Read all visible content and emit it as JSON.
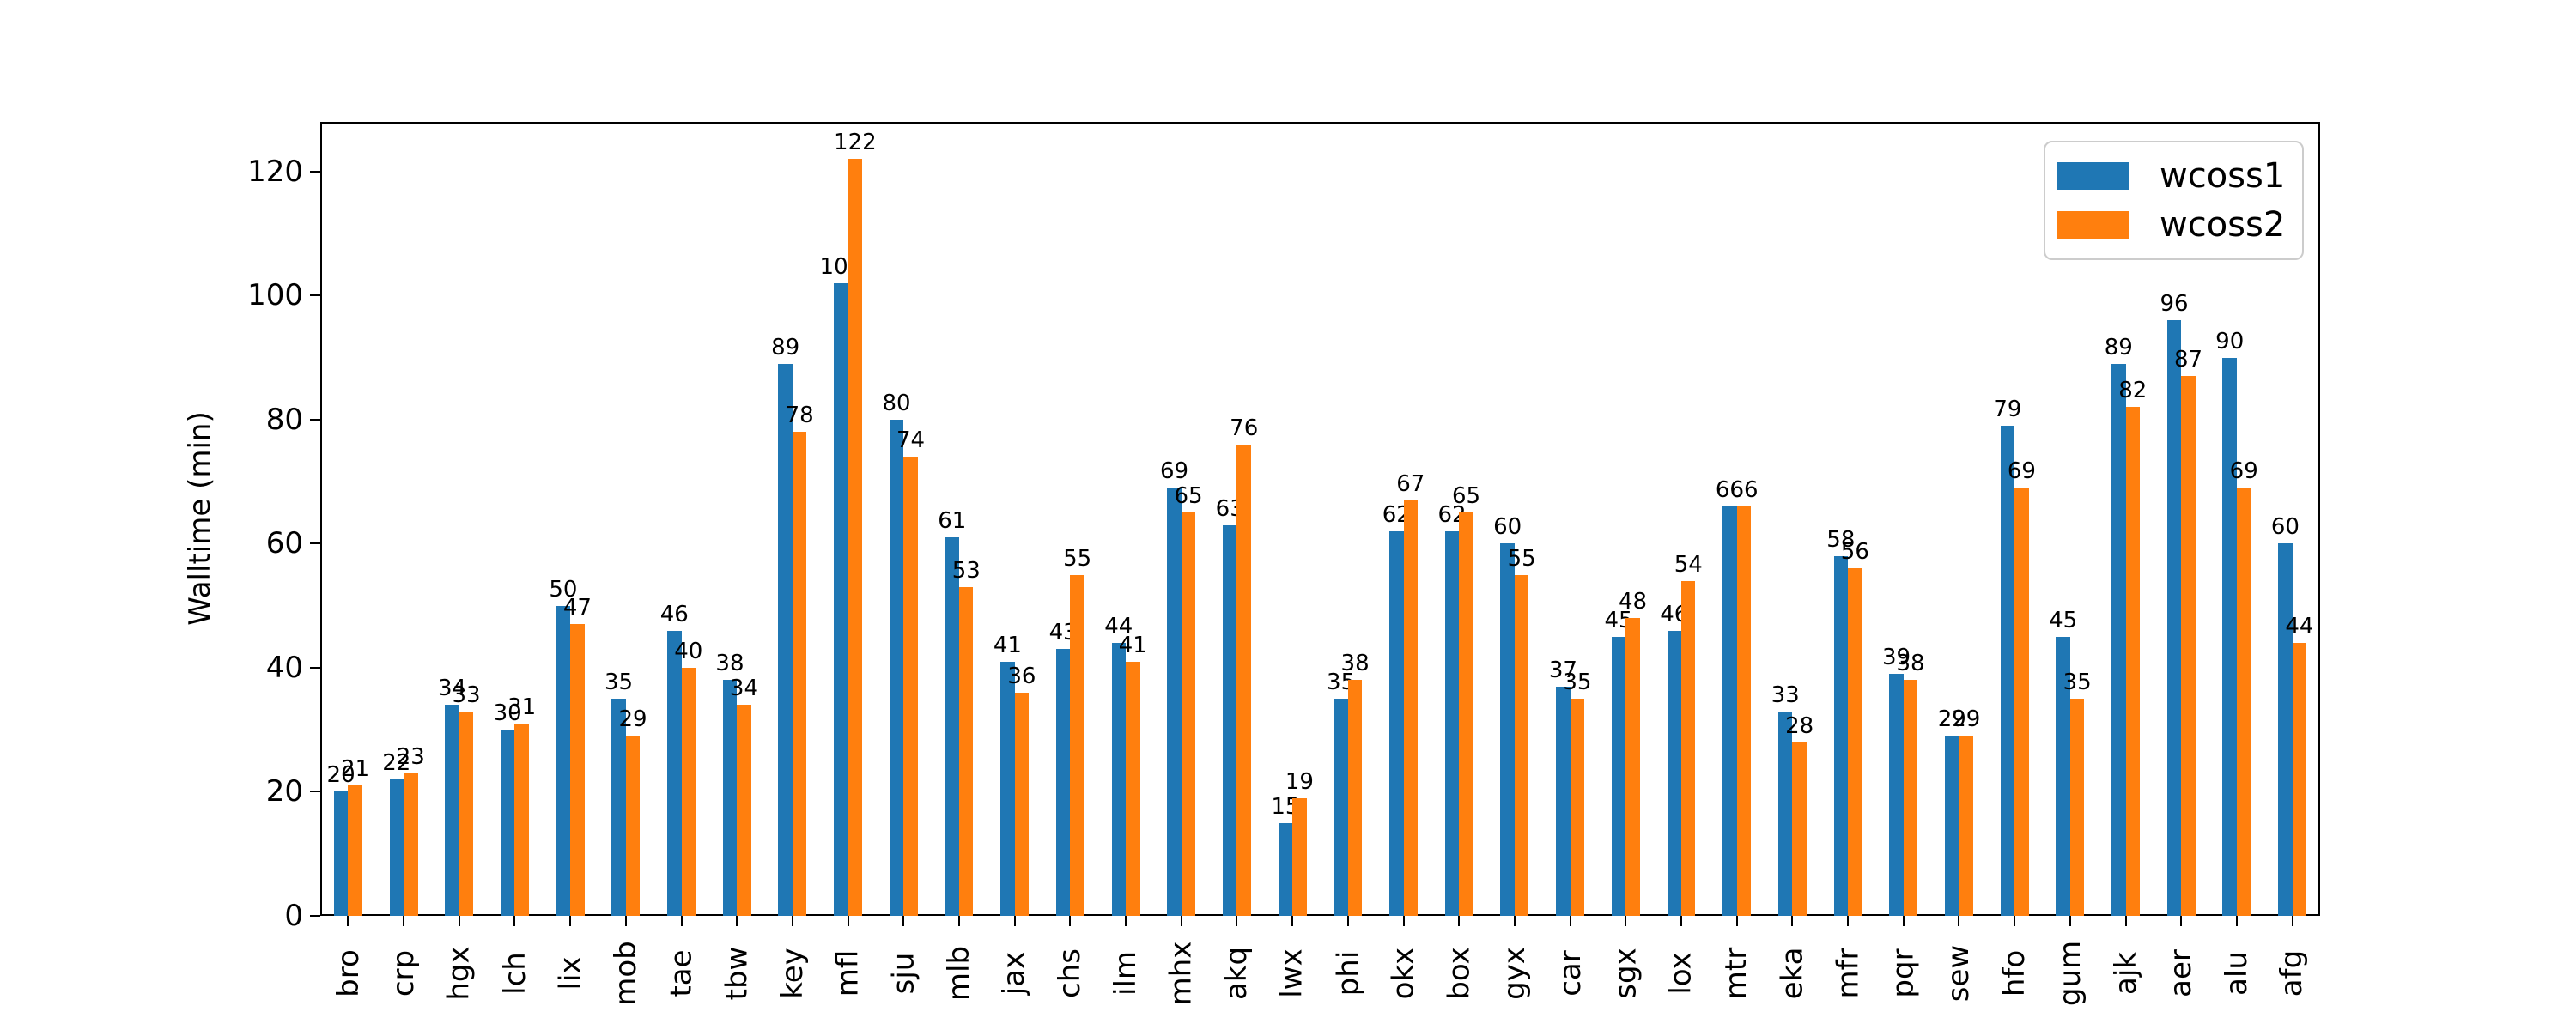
{
  "figure": {
    "background": "#ffffff"
  },
  "chart_data": {
    "type": "bar",
    "title": "",
    "xlabel": "",
    "ylabel": "Walltime (min)",
    "grid": false,
    "legend_position": "upper right",
    "x_tick_rotation": 90,
    "bar_value_labels": true,
    "yticks": [
      0,
      20,
      40,
      60,
      80,
      100,
      120
    ],
    "ylim": [
      0,
      128
    ],
    "categories": [
      "bro",
      "crp",
      "hgx",
      "lch",
      "lix",
      "mob",
      "tae",
      "tbw",
      "key",
      "mfl",
      "sju",
      "mlb",
      "jax",
      "chs",
      "ilm",
      "mhx",
      "akq",
      "lwx",
      "phi",
      "okx",
      "box",
      "gyx",
      "car",
      "sgx",
      "lox",
      "mtr",
      "eka",
      "mfr",
      "pqr",
      "sew",
      "hfo",
      "gum",
      "ajk",
      "aer",
      "alu",
      "afg"
    ],
    "series": [
      {
        "name": "wcoss1",
        "color": "#1f77b4",
        "values": [
          20,
          22,
          34,
          30,
          50,
          35,
          46,
          38,
          89,
          102,
          80,
          61,
          41,
          43,
          44,
          69,
          63,
          15,
          35,
          62,
          62,
          60,
          37,
          45,
          46,
          66,
          33,
          58,
          39,
          29,
          79,
          45,
          89,
          96,
          90,
          60
        ]
      },
      {
        "name": "wcoss2",
        "color": "#ff7f0e",
        "values": [
          21,
          23,
          33,
          31,
          47,
          29,
          40,
          34,
          78,
          122,
          74,
          53,
          36,
          55,
          41,
          65,
          76,
          19,
          38,
          67,
          65,
          55,
          35,
          48,
          54,
          66,
          28,
          56,
          38,
          29,
          69,
          35,
          82,
          87,
          69,
          44
        ]
      }
    ]
  }
}
